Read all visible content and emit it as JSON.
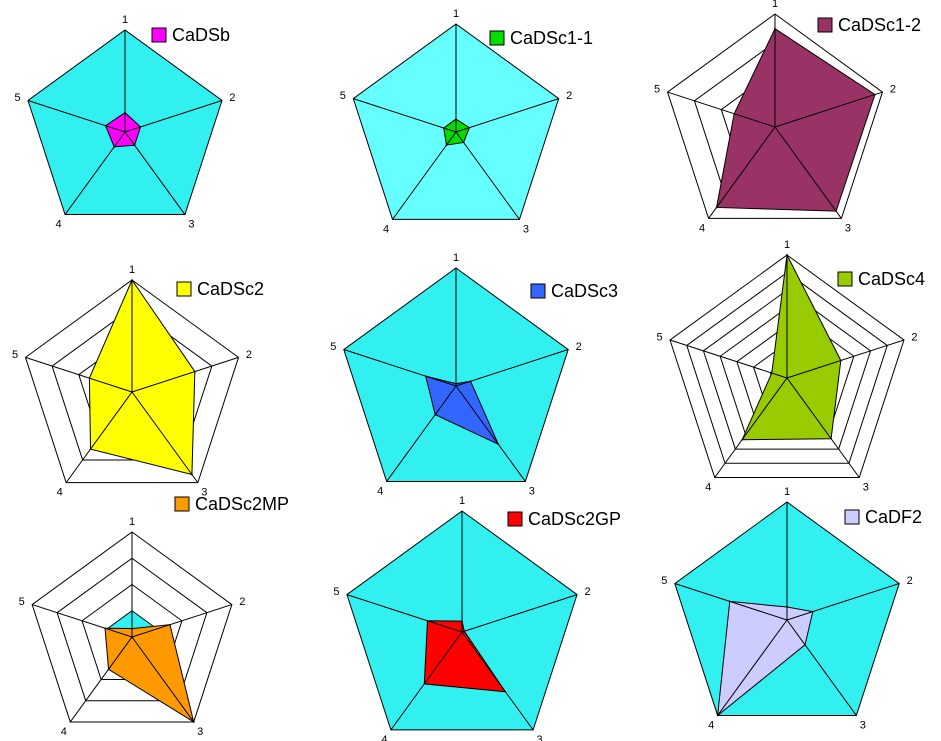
{
  "chart_data": [
    {
      "type": "radar",
      "name": "CaDSb",
      "color": "#ff00ff",
      "background": "#33f0f0",
      "rings": 1,
      "axes": [
        "1",
        "2",
        "3",
        "4",
        "5"
      ],
      "values": [
        0.19,
        0.16,
        0.16,
        0.18,
        0.2
      ]
    },
    {
      "type": "radar",
      "name": "CaDSc1-1",
      "color": "#00dd00",
      "background": "#66ffff",
      "rings": 1,
      "axes": [
        "1",
        "2",
        "3",
        "4",
        "5"
      ],
      "values": [
        0.12,
        0.13,
        0.12,
        0.15,
        0.12
      ]
    },
    {
      "type": "radar",
      "name": "CaDSc1-2",
      "color": "#993366",
      "background": "#66ffff",
      "rings": 4,
      "axes": [
        "1",
        "2",
        "3",
        "4",
        "5"
      ],
      "values": [
        0.87,
        0.93,
        0.92,
        0.88,
        0.38
      ]
    },
    {
      "type": "radar",
      "name": "CaDSc2",
      "color": "#ffff00",
      "background": "#33f0f0",
      "rings": 4,
      "axes": [
        "1",
        "2",
        "3",
        "4",
        "5"
      ],
      "values": [
        1.0,
        0.59,
        0.91,
        0.63,
        0.4
      ]
    },
    {
      "type": "radar",
      "name": "CaDSc3",
      "color": "#3366ff",
      "background": "#33f0f0",
      "rings": 1,
      "axes": [
        "1",
        "2",
        "3",
        "4",
        "5"
      ],
      "values": [
        0.02,
        0.13,
        0.61,
        0.3,
        0.27
      ]
    },
    {
      "type": "radar",
      "name": "CaDSc4",
      "color": "#99cc00",
      "background": "#33f0f0",
      "rings": 7,
      "axes": [
        "1",
        "2",
        "3",
        "4",
        "5"
      ],
      "values": [
        1.0,
        0.46,
        0.61,
        0.62,
        0.13
      ]
    },
    {
      "type": "radar",
      "name": "CaDSc2MP",
      "color": "#ff9900",
      "background": "#33f0f0",
      "rings": 4,
      "axes": [
        "1",
        "2",
        "3",
        "4",
        "5"
      ],
      "values": [
        0.08,
        0.38,
        1.0,
        0.38,
        0.27
      ]
    },
    {
      "type": "radar",
      "name": "CaDSc2GP",
      "color": "#ff0000",
      "background": "#33f0f0",
      "rings": 1,
      "axes": [
        "1",
        "2",
        "3",
        "4",
        "5"
      ],
      "values": [
        0.09,
        0.02,
        0.61,
        0.53,
        0.3
      ]
    },
    {
      "type": "radar",
      "name": "CaDF2",
      "color": "#ccccff",
      "background": "#33f0f0",
      "rings": 1,
      "axes": [
        "1",
        "2",
        "3",
        "4",
        "5"
      ],
      "values": [
        0.11,
        0.23,
        0.26,
        1.0,
        0.51
      ]
    }
  ]
}
